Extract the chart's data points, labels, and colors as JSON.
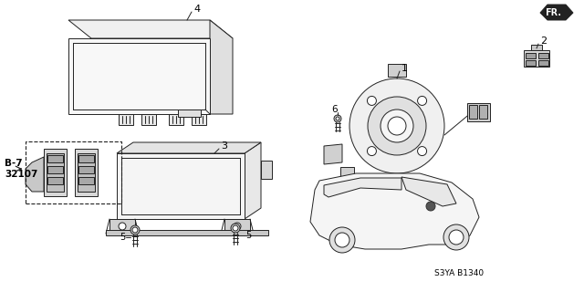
{
  "bg_color": "#ffffff",
  "line_color": "#222222",
  "text_color": "#000000",
  "fig_width": 6.4,
  "fig_height": 3.2,
  "dpi": 100,
  "labels": {
    "part1": "1",
    "part2": "2",
    "part3": "3",
    "part4": "4",
    "part5a": "5",
    "part5b": "5",
    "part6": "6",
    "fr_label": "FR.",
    "ref_label": "B-7\n32107",
    "diagram_code": "S3YA B1340"
  }
}
